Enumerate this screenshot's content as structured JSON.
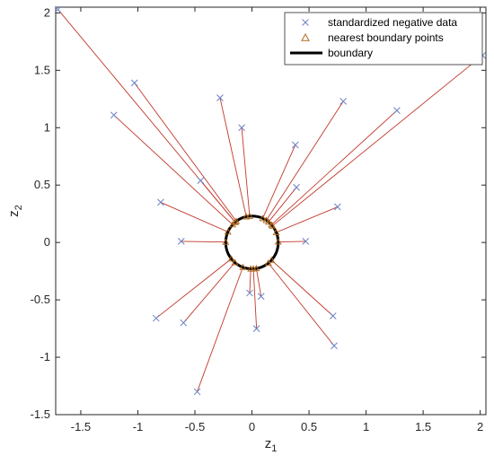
{
  "chart_data": {
    "type": "scatter",
    "xlabel": "z",
    "xlabel_sub": "1",
    "ylabel": "z",
    "ylabel_sub": "2",
    "xlim": [
      -1.72,
      2.05
    ],
    "ylim": [
      -1.5,
      2.05
    ],
    "xticks": [
      -1.5,
      -1,
      -0.5,
      0,
      0.5,
      1,
      1.5,
      2
    ],
    "xtick_labels": [
      "-1.5",
      "-1",
      "-0.5",
      "0",
      "0.5",
      "1",
      "1.5",
      "2"
    ],
    "yticks": [
      -1.5,
      -1,
      -0.5,
      0,
      0.5,
      1,
      1.5,
      2
    ],
    "ytick_labels": [
      "-1.5",
      "-1",
      "-0.5",
      "0",
      "0.5",
      "1",
      "1.5",
      "2"
    ],
    "grid": false,
    "legend_position": "top-right",
    "legend": [
      {
        "label": "standardized negative data",
        "marker": "x",
        "color": "#6b82c4"
      },
      {
        "label": "nearest boundary points",
        "marker": "triangle",
        "color": "#b06a1e"
      },
      {
        "label": "boundary",
        "marker": "line",
        "color": "#000000"
      }
    ],
    "boundary": {
      "center": [
        0,
        0
      ],
      "radius": 0.23,
      "color": "#000000"
    },
    "connector_color": "#c0392b",
    "points": [
      [
        -1.7,
        2.03
      ],
      [
        -1.03,
        1.39
      ],
      [
        -1.21,
        1.11
      ],
      [
        -0.28,
        1.26
      ],
      [
        -0.09,
        1.0
      ],
      [
        -0.45,
        0.54
      ],
      [
        -0.8,
        0.35
      ],
      [
        -0.62,
        0.01
      ],
      [
        0.38,
        0.85
      ],
      [
        0.8,
        1.23
      ],
      [
        1.27,
        1.15
      ],
      [
        2.02,
        1.63
      ],
      [
        0.39,
        0.48
      ],
      [
        0.75,
        0.31
      ],
      [
        0.47,
        0.01
      ],
      [
        -0.84,
        -0.66
      ],
      [
        -0.6,
        -0.7
      ],
      [
        -0.48,
        -1.3
      ],
      [
        -0.02,
        -0.44
      ],
      [
        0.08,
        -0.47
      ],
      [
        0.04,
        -0.75
      ],
      [
        0.71,
        -0.64
      ],
      [
        0.72,
        -0.9
      ]
    ]
  }
}
